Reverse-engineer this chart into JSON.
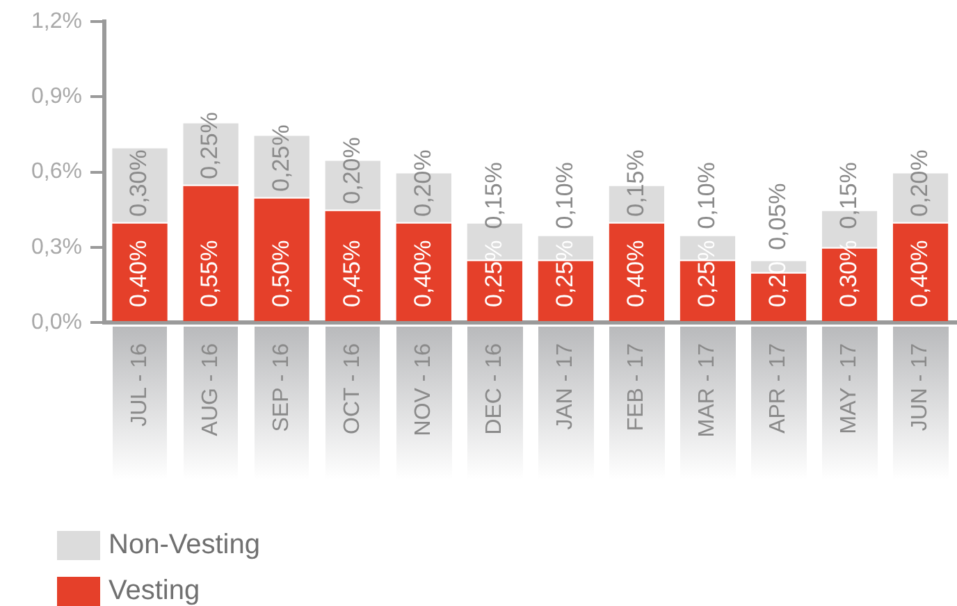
{
  "chart_data": {
    "type": "bar",
    "stacked": true,
    "categories": [
      "JUL - 16",
      "AUG - 16",
      "SEP - 16",
      "OCT - 16",
      "NOV - 16",
      "DEC - 16",
      "JAN - 17",
      "FEB - 17",
      "MAR - 17",
      "APR - 17",
      "MAY - 17",
      "JUN - 17"
    ],
    "series": [
      {
        "name": "Vesting",
        "color": "#e5402a",
        "values": [
          0.4,
          0.55,
          0.5,
          0.45,
          0.4,
          0.25,
          0.25,
          0.4,
          0.25,
          0.2,
          0.3,
          0.4
        ],
        "value_labels": [
          "0,40%",
          "0,55%",
          "0,50%",
          "0,45%",
          "0,40%",
          "0,25%",
          "0,25%",
          "0,40%",
          "0,25%",
          "0,20",
          "0,30%",
          "0,40%"
        ]
      },
      {
        "name": "Non-Vesting",
        "color": "#dcdcdc",
        "values": [
          0.3,
          0.25,
          0.25,
          0.2,
          0.2,
          0.15,
          0.1,
          0.15,
          0.1,
          0.05,
          0.15,
          0.2
        ],
        "value_labels": [
          "0,30%",
          "0,25%",
          "0,25%",
          "0,20%",
          "0,20%",
          "0,15%",
          "0,10%",
          "0,15%",
          "0,10%",
          "0,05%",
          "0,15%",
          "0,20%"
        ]
      }
    ],
    "ylim": [
      0,
      1.2
    ],
    "yticks": [
      {
        "value": 0,
        "label": "0,0%"
      },
      {
        "value": 0.3,
        "label": "0,3%"
      },
      {
        "value": 0.6,
        "label": "0,6%"
      },
      {
        "value": 0.9,
        "label": "0,9%"
      },
      {
        "value": 1.2,
        "label": "1,2%"
      }
    ],
    "grid": false,
    "legend": "bottom left"
  }
}
